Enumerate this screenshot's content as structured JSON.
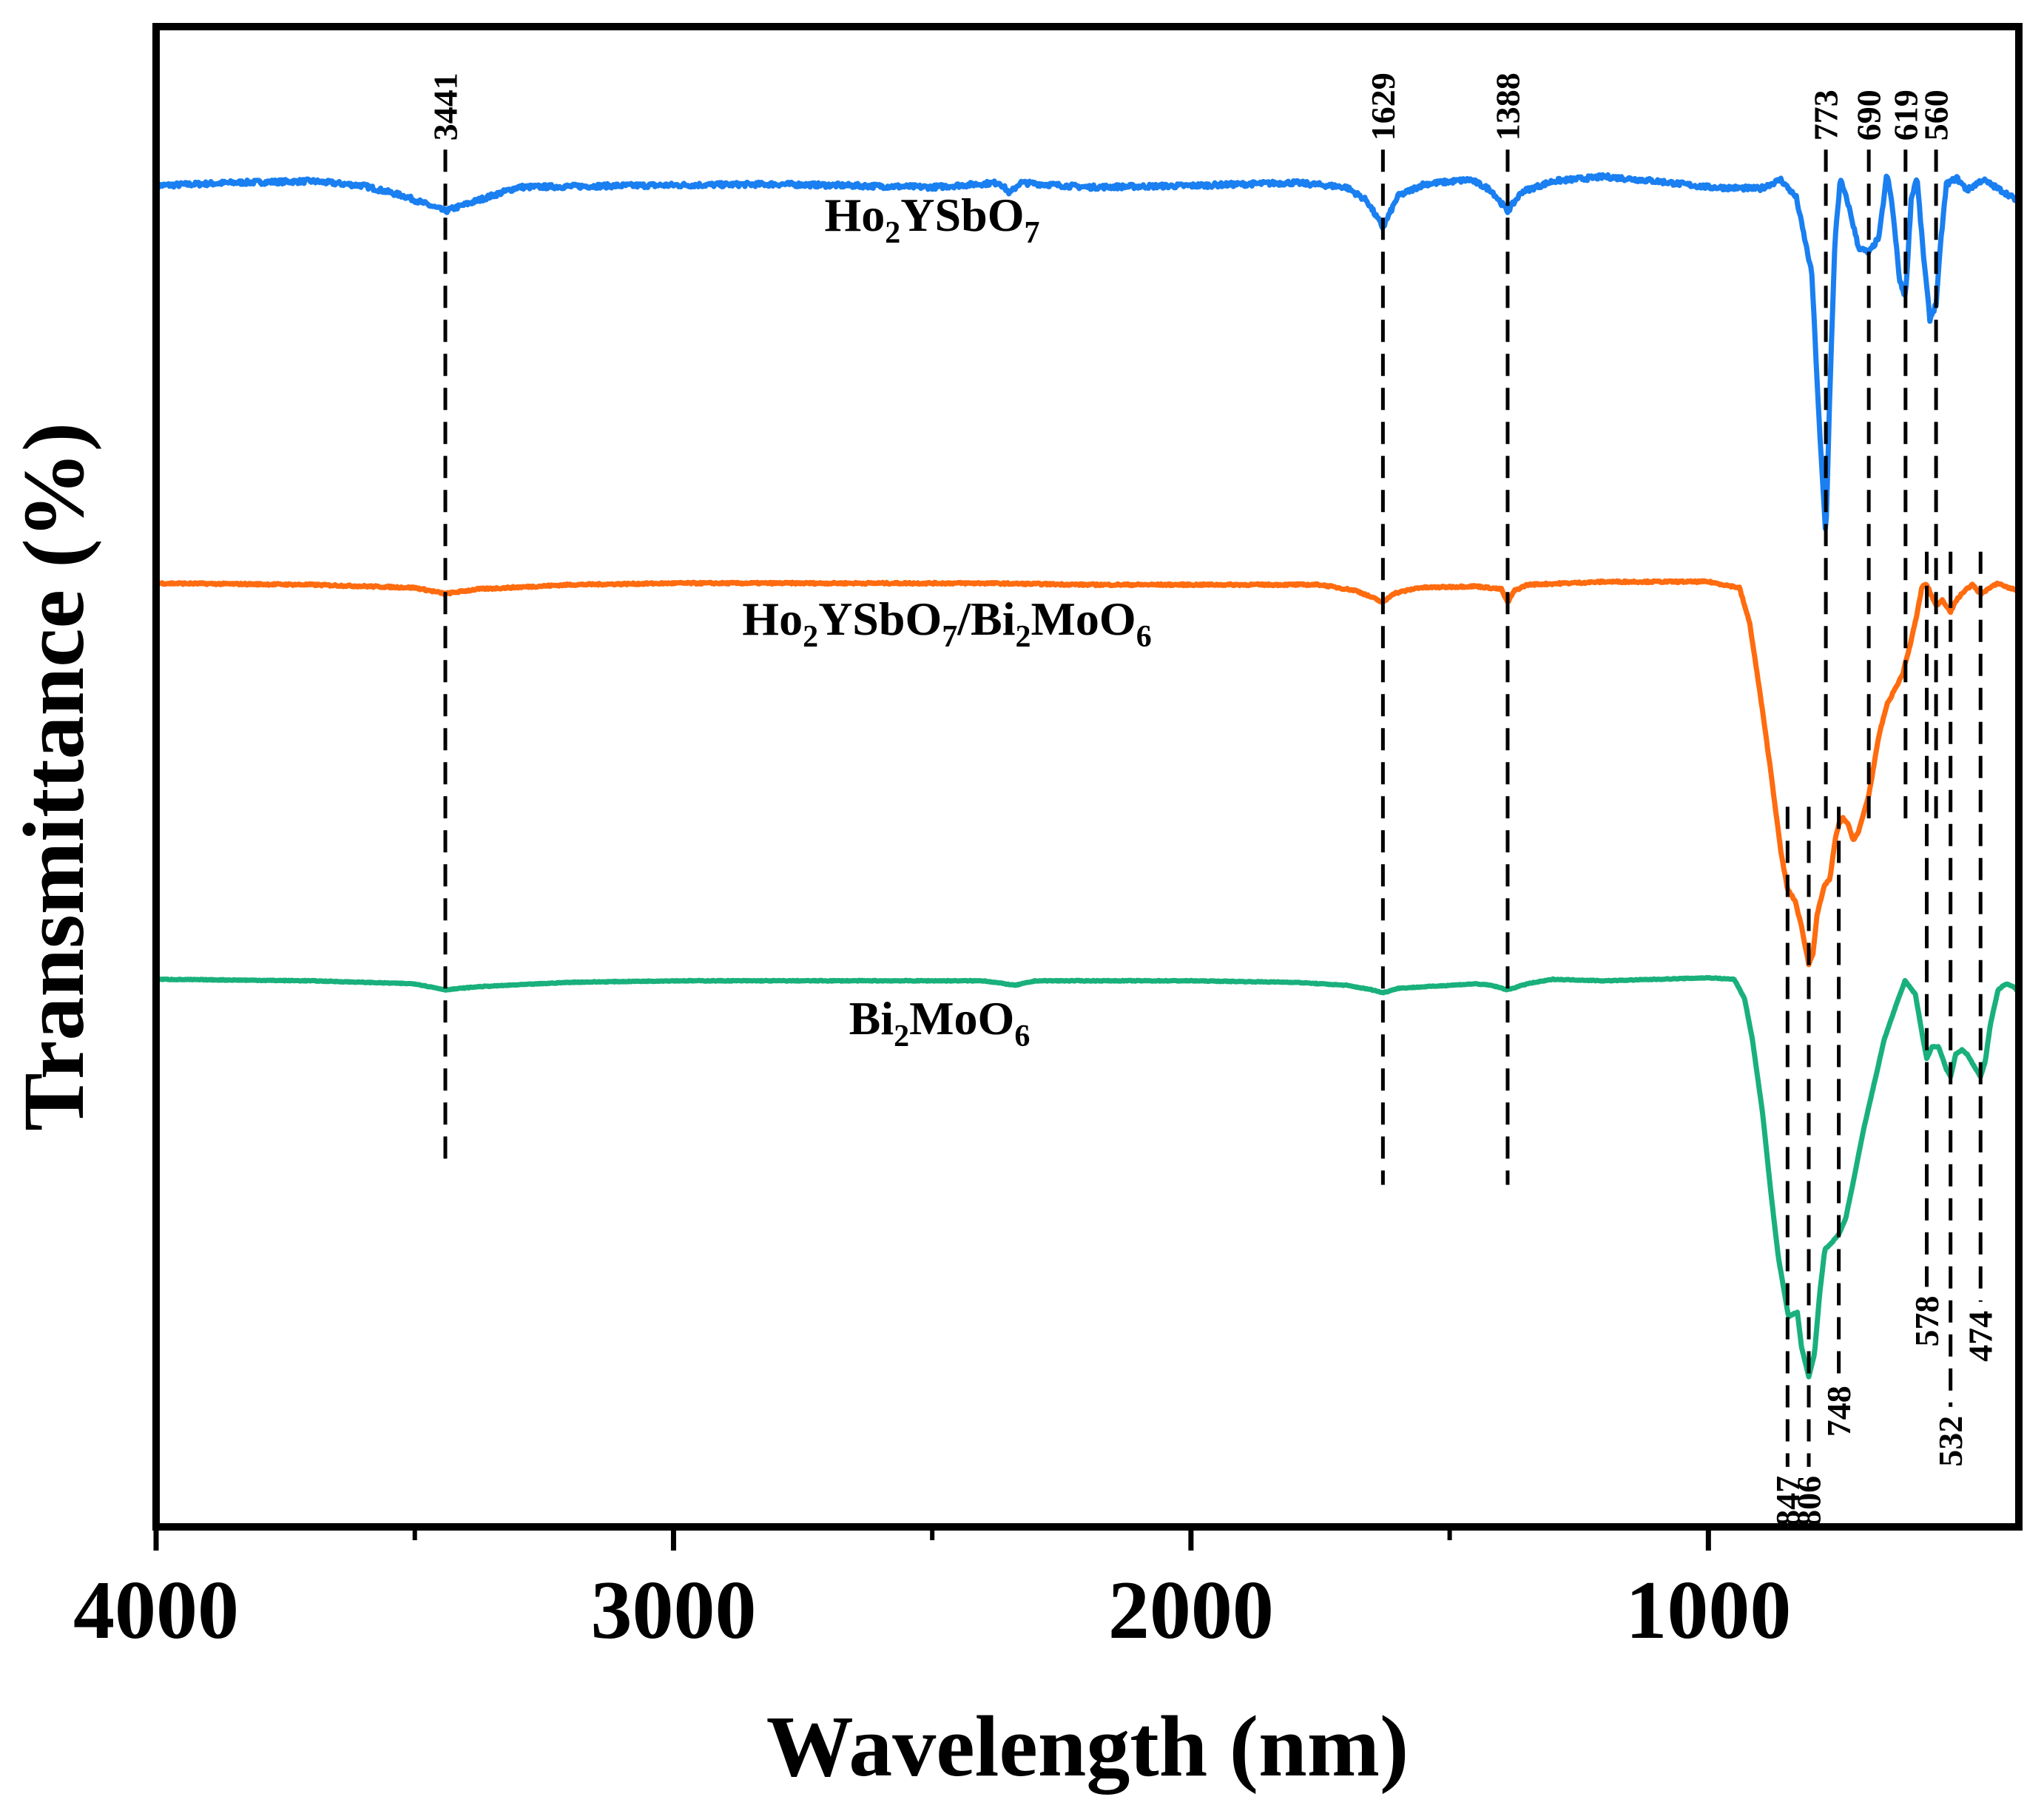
{
  "chart_data": {
    "type": "line",
    "title": "",
    "xlabel": "Wavelength (nm)",
    "ylabel": "Transmittance (%)",
    "xlim": [
      4000,
      400
    ],
    "ylim": [
      0,
      100
    ],
    "x_ticks": [
      4000,
      3000,
      2000,
      1000
    ],
    "x_minor_ticks": [
      3500,
      2500,
      1500
    ],
    "grid": false,
    "series": [
      {
        "name": "Ho2YSbO7",
        "label_main": "Ho",
        "label_sub1": "2",
        "label_mid": "YSbO",
        "label_sub2": "7",
        "color": "#1a7ff0",
        "noise": 0.3,
        "points": [
          [
            4000,
            89.4
          ],
          [
            3850,
            89.6
          ],
          [
            3700,
            89.7
          ],
          [
            3600,
            89.4
          ],
          [
            3520,
            88.7
          ],
          [
            3441,
            87.7
          ],
          [
            3380,
            88.4
          ],
          [
            3300,
            89.3
          ],
          [
            3100,
            89.4
          ],
          [
            2800,
            89.5
          ],
          [
            2500,
            89.3
          ],
          [
            2370,
            89.6
          ],
          [
            2350,
            88.9
          ],
          [
            2330,
            89.6
          ],
          [
            2200,
            89.3
          ],
          [
            2000,
            89.4
          ],
          [
            1800,
            89.6
          ],
          [
            1700,
            89.3
          ],
          [
            1660,
            88.4
          ],
          [
            1629,
            86.6
          ],
          [
            1600,
            88.7
          ],
          [
            1550,
            89.5
          ],
          [
            1460,
            89.8
          ],
          [
            1420,
            89.1
          ],
          [
            1388,
            87.7
          ],
          [
            1360,
            89.0
          ],
          [
            1300,
            89.7
          ],
          [
            1200,
            90.0
          ],
          [
            1100,
            89.7
          ],
          [
            1000,
            89.3
          ],
          [
            900,
            89.2
          ],
          [
            860,
            89.8
          ],
          [
            830,
            88.6
          ],
          [
            800,
            83.5
          ],
          [
            785,
            73
          ],
          [
            773,
            66
          ],
          [
            765,
            76
          ],
          [
            755,
            86
          ],
          [
            745,
            89.8
          ],
          [
            730,
            88.2
          ],
          [
            710,
            85.3
          ],
          [
            690,
            84.9
          ],
          [
            670,
            86
          ],
          [
            655,
            90.2
          ],
          [
            645,
            88.2
          ],
          [
            630,
            83
          ],
          [
            619,
            82
          ],
          [
            608,
            88.5
          ],
          [
            597,
            90.0
          ],
          [
            585,
            85
          ],
          [
            572,
            80.5
          ],
          [
            560,
            81.5
          ],
          [
            550,
            86
          ],
          [
            540,
            89.5
          ],
          [
            520,
            89.9
          ],
          [
            500,
            89.1
          ],
          [
            470,
            89.8
          ],
          [
            440,
            89.2
          ],
          [
            420,
            88.8
          ],
          [
            400,
            88.3
          ]
        ]
      },
      {
        "name": "Ho2YSbO7/Bi2MoO6",
        "label_main": "Ho",
        "label_sub1": "2",
        "label_mid": "YSbO",
        "label_sub2": "7",
        "label_tail": "/Bi",
        "label_sub3": "2",
        "label_tail2": "MoO",
        "label_sub4": "6",
        "color": "#ff6b0f",
        "noise": 0.12,
        "points": [
          [
            4000,
            62.9
          ],
          [
            3700,
            62.8
          ],
          [
            3500,
            62.6
          ],
          [
            3441,
            62.2
          ],
          [
            3380,
            62.5
          ],
          [
            3200,
            62.8
          ],
          [
            3000,
            62.9
          ],
          [
            2700,
            62.9
          ],
          [
            2400,
            62.9
          ],
          [
            2200,
            62.8
          ],
          [
            2000,
            62.8
          ],
          [
            1750,
            62.8
          ],
          [
            1680,
            62.4
          ],
          [
            1640,
            61.8
          ],
          [
            1629,
            61.6
          ],
          [
            1610,
            62.2
          ],
          [
            1560,
            62.6
          ],
          [
            1450,
            62.7
          ],
          [
            1400,
            62.5
          ],
          [
            1388,
            61.6
          ],
          [
            1375,
            62.4
          ],
          [
            1350,
            62.8
          ],
          [
            1200,
            63.0
          ],
          [
            1000,
            63.0
          ],
          [
            940,
            62.6
          ],
          [
            920,
            60.2
          ],
          [
            900,
            55.5
          ],
          [
            880,
            50.5
          ],
          [
            860,
            45.0
          ],
          [
            847,
            42.5
          ],
          [
            832,
            41.7
          ],
          [
            820,
            40.0
          ],
          [
            806,
            37.5
          ],
          [
            798,
            38.2
          ],
          [
            790,
            40.8
          ],
          [
            775,
            42.8
          ],
          [
            765,
            43.2
          ],
          [
            755,
            45.8
          ],
          [
            748,
            46.8
          ],
          [
            740,
            47.3
          ],
          [
            730,
            46.8
          ],
          [
            720,
            45.8
          ],
          [
            710,
            46.3
          ],
          [
            690,
            48.8
          ],
          [
            670,
            52.8
          ],
          [
            655,
            54.8
          ],
          [
            640,
            55.8
          ],
          [
            625,
            56.8
          ],
          [
            610,
            58.8
          ],
          [
            597,
            60.8
          ],
          [
            587,
            62.7
          ],
          [
            578,
            62.8
          ],
          [
            560,
            61.4
          ],
          [
            548,
            61.8
          ],
          [
            532,
            61.0
          ],
          [
            520,
            61.8
          ],
          [
            505,
            62.4
          ],
          [
            490,
            62.8
          ],
          [
            474,
            62.2
          ],
          [
            460,
            62.5
          ],
          [
            440,
            62.9
          ],
          [
            420,
            62.6
          ],
          [
            400,
            62.4
          ]
        ]
      },
      {
        "name": "Bi2MoO6",
        "label_main": "Bi",
        "label_sub1": "2",
        "label_mid": "MoO",
        "label_sub2": "6",
        "color": "#19b07c",
        "noise": 0.05,
        "points": [
          [
            4000,
            36.5
          ],
          [
            3700,
            36.4
          ],
          [
            3500,
            36.2
          ],
          [
            3441,
            35.8
          ],
          [
            3380,
            36.0
          ],
          [
            3200,
            36.3
          ],
          [
            3000,
            36.4
          ],
          [
            2700,
            36.4
          ],
          [
            2400,
            36.4
          ],
          [
            2340,
            36.1
          ],
          [
            2300,
            36.4
          ],
          [
            2000,
            36.4
          ],
          [
            1800,
            36.3
          ],
          [
            1700,
            36.1
          ],
          [
            1650,
            35.8
          ],
          [
            1629,
            35.6
          ],
          [
            1600,
            35.9
          ],
          [
            1450,
            36.2
          ],
          [
            1420,
            36.1
          ],
          [
            1388,
            35.8
          ],
          [
            1350,
            36.2
          ],
          [
            1300,
            36.5
          ],
          [
            1200,
            36.4
          ],
          [
            1000,
            36.6
          ],
          [
            950,
            36.5
          ],
          [
            930,
            35.2
          ],
          [
            915,
            32.5
          ],
          [
            895,
            27.5
          ],
          [
            880,
            22.5
          ],
          [
            865,
            18.0
          ],
          [
            850,
            15.0
          ],
          [
            845,
            14.0
          ],
          [
            835,
            14.2
          ],
          [
            828,
            14.3
          ],
          [
            820,
            12.0
          ],
          [
            806,
            10.0
          ],
          [
            795,
            11.5
          ],
          [
            785,
            15.5
          ],
          [
            775,
            18.5
          ],
          [
            760,
            19.0
          ],
          [
            748,
            19.5
          ],
          [
            735,
            20.5
          ],
          [
            720,
            23.0
          ],
          [
            700,
            26.5
          ],
          [
            680,
            29.5
          ],
          [
            660,
            32.5
          ],
          [
            640,
            34.5
          ],
          [
            620,
            36.4
          ],
          [
            600,
            35.5
          ],
          [
            585,
            32.5
          ],
          [
            578,
            31.2
          ],
          [
            568,
            32.0
          ],
          [
            555,
            32.0
          ],
          [
            540,
            30.5
          ],
          [
            532,
            30.0
          ],
          [
            522,
            31.5
          ],
          [
            510,
            31.8
          ],
          [
            500,
            31.5
          ],
          [
            488,
            30.8
          ],
          [
            474,
            30.0
          ],
          [
            465,
            31.0
          ],
          [
            455,
            33.5
          ],
          [
            440,
            35.8
          ],
          [
            425,
            36.2
          ],
          [
            410,
            36.0
          ],
          [
            400,
            35.6
          ]
        ]
      }
    ],
    "peak_lines": [
      {
        "x": 3441,
        "label": "3441",
        "y_top": 91.8,
        "y_bottom": 24.0,
        "label_pos": "top"
      },
      {
        "x": 1629,
        "label": "1629",
        "y_top": 91.8,
        "y_bottom": 22.8,
        "label_pos": "top"
      },
      {
        "x": 1388,
        "label": "1388",
        "y_top": 91.8,
        "y_bottom": 22.8,
        "label_pos": "top"
      },
      {
        "x": 773,
        "label": "773",
        "y_top": 91.8,
        "y_bottom": 47.0,
        "label_pos": "top"
      },
      {
        "x": 690,
        "label": "690",
        "y_top": 91.8,
        "y_bottom": 47.0,
        "label_pos": "top"
      },
      {
        "x": 619,
        "label": "619",
        "y_top": 91.8,
        "y_bottom": 47.0,
        "label_pos": "top"
      },
      {
        "x": 560,
        "label": "560",
        "y_top": 91.8,
        "y_bottom": 47.0,
        "label_pos": "top"
      },
      {
        "x": 847,
        "label": "847",
        "y_top": 48.0,
        "y_bottom": 4.0,
        "label_pos": "bottom"
      },
      {
        "x": 806,
        "label": "806",
        "y_top": 48.0,
        "y_bottom": 4.0,
        "label_pos": "bottom"
      },
      {
        "x": 748,
        "label": "748",
        "y_top": 48.0,
        "y_bottom": 10.0,
        "label_pos": "bottom"
      },
      {
        "x": 578,
        "label": "578",
        "y_top": 65.0,
        "y_bottom": 16.0,
        "label_pos": "bottom"
      },
      {
        "x": 532,
        "label": "532",
        "y_top": 65.0,
        "y_bottom": 8.0,
        "label_pos": "bottom"
      },
      {
        "x": 474,
        "label": "474",
        "y_top": 65.0,
        "y_bottom": 15.0,
        "label_pos": "bottom"
      }
    ]
  }
}
